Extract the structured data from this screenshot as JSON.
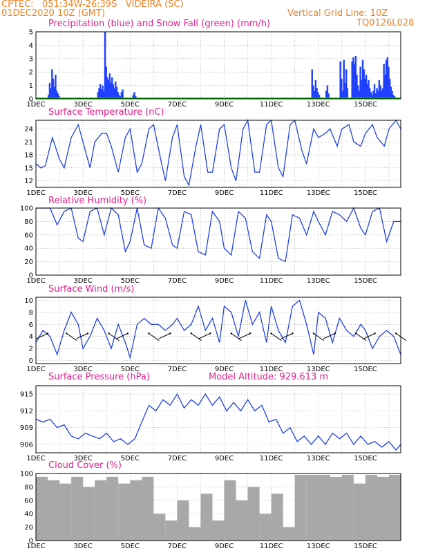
{
  "header": {
    "line1": "CPTEC:   051:34W-26:39S   VIDEIRA (SC)",
    "line2": "01DEC2020 10Z (GMT)",
    "grid_note": "Vertical Grid Line: 10Z",
    "code": "TQ0126L028",
    "altitude": "Model Altitude: 929.613 m"
  },
  "colors": {
    "precip": "#2040ff",
    "snow": "#00c000",
    "line": "#2040e0",
    "wind": "#000000",
    "cloud": "#a8a8a8",
    "title": "#e0208c",
    "header": "#f08020"
  },
  "x_tick_labels": [
    "1DEC",
    "3DEC",
    "5DEC",
    "7DEC",
    "9DEC",
    "11DEC",
    "13DEC",
    "15DEC"
  ],
  "chart_data": [
    {
      "type": "bar",
      "id": "precip",
      "title": "Precipitation (blue) and Snow Fall (green) (mm/h)",
      "ylim": [
        0,
        5
      ],
      "yticks": [
        0,
        1,
        2,
        3,
        4,
        5
      ],
      "x_unit": "days since 01DEC 10Z",
      "series": [
        {
          "name": "Precipitation",
          "x": [
            0.5,
            0.55,
            0.6,
            0.65,
            0.7,
            0.75,
            0.8,
            0.85,
            0.9,
            0.95,
            2.6,
            2.65,
            2.7,
            2.75,
            2.8,
            2.85,
            2.9,
            2.95,
            3.0,
            3.05,
            3.1,
            3.15,
            3.2,
            3.25,
            3.3,
            3.35,
            3.4,
            3.45,
            3.5,
            3.55,
            3.6,
            3.65,
            4.1,
            4.15,
            4.2,
            11.7,
            11.75,
            11.8,
            11.85,
            11.9,
            11.95,
            12.0,
            12.3,
            12.35,
            12.4,
            12.9,
            12.95,
            13.0,
            13.05,
            13.1,
            13.15,
            13.2,
            13.4,
            13.45,
            13.5,
            13.55,
            13.6,
            13.65,
            13.7,
            13.75,
            13.8,
            13.85,
            13.9,
            13.95,
            14.0,
            14.05,
            14.1,
            14.15,
            14.2,
            14.25,
            14.3,
            14.35,
            14.4,
            14.45,
            14.5,
            14.55,
            14.6,
            14.65,
            14.7,
            14.75,
            14.8,
            14.85,
            14.9,
            14.95,
            15.0,
            15.05,
            15.1,
            15.15,
            15.2,
            15.25
          ],
          "values": [
            0.3,
            1.2,
            0.8,
            2.2,
            1.5,
            0.9,
            1.8,
            0.6,
            0.4,
            0.2,
            0.5,
            0.8,
            1.1,
            0.7,
            1.0,
            0.6,
            5.0,
            2.4,
            1.6,
            1.4,
            1.9,
            1.2,
            1.6,
            1.1,
            0.8,
            1.3,
            0.9,
            0.5,
            0.3,
            0.2,
            0.5,
            0.7,
            0.3,
            0.5,
            0.2,
            2.2,
            1.0,
            0.6,
            1.4,
            0.8,
            0.5,
            0.3,
            0.6,
            1.0,
            0.4,
            2.8,
            1.5,
            0.6,
            2.9,
            1.2,
            2.2,
            0.8,
            2.8,
            3.1,
            2.6,
            3.2,
            1.8,
            1.0,
            0.6,
            2.4,
            1.4,
            2.9,
            2.2,
            1.5,
            1.8,
            1.1,
            1.4,
            0.8,
            0.5,
            0.3,
            0.6,
            1.1,
            0.4,
            0.8,
            0.6,
            1.4,
            1.0,
            0.6,
            0.8,
            2.6,
            1.8,
            2.9,
            3.1,
            2.4,
            1.5,
            0.9,
            0.6,
            0.3,
            0.2,
            0.1
          ]
        },
        {
          "name": "Snow Fall",
          "x": [
            0,
            15.5
          ],
          "values": [
            0,
            0
          ]
        }
      ]
    },
    {
      "type": "line",
      "id": "temp",
      "title": "Surface Temperature (nC)",
      "ylim": [
        10.5,
        26
      ],
      "yticks": [
        12,
        15,
        18,
        21,
        24
      ],
      "series": [
        {
          "name": "Temperature",
          "x": [
            0,
            0.2,
            0.4,
            0.7,
            1.0,
            1.2,
            1.5,
            1.8,
            2.0,
            2.3,
            2.5,
            2.8,
            3.0,
            3.2,
            3.5,
            3.8,
            4.0,
            4.3,
            4.5,
            4.8,
            5.0,
            5.3,
            5.5,
            5.8,
            6.0,
            6.3,
            6.5,
            6.8,
            7.0,
            7.3,
            7.5,
            7.8,
            8.0,
            8.3,
            8.5,
            8.8,
            9.0,
            9.3,
            9.5,
            9.8,
            10.0,
            10.3,
            10.5,
            10.8,
            11.0,
            11.3,
            11.5,
            11.8,
            12.0,
            12.3,
            12.5,
            12.8,
            13.0,
            13.3,
            13.5,
            13.8,
            14.0,
            14.3,
            14.5,
            14.8,
            15.0,
            15.3,
            15.5
          ],
          "values": [
            16,
            15,
            15.5,
            22,
            17,
            15,
            22,
            25,
            21,
            15,
            21,
            23,
            23,
            20,
            14,
            22,
            24,
            14,
            16,
            24,
            25,
            17,
            12,
            22,
            25,
            13,
            11,
            20,
            25,
            14,
            14,
            24,
            25,
            15,
            12,
            24,
            26,
            14,
            14,
            25,
            26,
            15,
            13,
            25,
            26,
            19,
            16,
            24,
            22,
            23,
            24,
            20,
            24,
            25,
            21,
            20,
            23,
            25,
            22,
            20,
            24,
            26,
            24
          ]
        }
      ]
    },
    {
      "type": "line",
      "id": "rh",
      "title": "Relative Humidity (%)",
      "ylim": [
        0,
        100
      ],
      "yticks": [
        0,
        20,
        40,
        60,
        80,
        100
      ],
      "series": [
        {
          "name": "Humidity",
          "x": [
            0,
            0.3,
            0.6,
            0.9,
            1.2,
            1.5,
            1.8,
            2.0,
            2.3,
            2.6,
            2.9,
            3.2,
            3.5,
            3.8,
            4.0,
            4.3,
            4.6,
            4.9,
            5.2,
            5.5,
            5.8,
            6.0,
            6.3,
            6.6,
            6.9,
            7.2,
            7.5,
            7.8,
            8.0,
            8.3,
            8.6,
            8.9,
            9.2,
            9.5,
            9.8,
            10.0,
            10.3,
            10.6,
            10.9,
            11.2,
            11.5,
            11.8,
            12.0,
            12.3,
            12.6,
            12.9,
            13.2,
            13.5,
            13.8,
            14.0,
            14.3,
            14.6,
            14.9,
            15.2,
            15.5
          ],
          "values": [
            100,
            100,
            100,
            75,
            95,
            100,
            55,
            50,
            95,
            100,
            60,
            100,
            90,
            35,
            50,
            100,
            45,
            40,
            100,
            85,
            45,
            40,
            95,
            90,
            35,
            30,
            95,
            80,
            40,
            30,
            95,
            85,
            35,
            25,
            90,
            80,
            25,
            20,
            90,
            85,
            60,
            95,
            80,
            60,
            95,
            90,
            80,
            100,
            70,
            60,
            95,
            100,
            50,
            80,
            80
          ]
        }
      ]
    },
    {
      "type": "line",
      "id": "wind",
      "title": "Surface Wind (m/s)",
      "ylim": [
        -0.5,
        10.5
      ],
      "yticks": [
        0,
        2,
        4,
        6,
        8,
        10
      ],
      "series": [
        {
          "name": "Wind speed",
          "x": [
            0,
            0.3,
            0.6,
            0.9,
            1.2,
            1.5,
            1.8,
            2.0,
            2.3,
            2.6,
            2.9,
            3.2,
            3.5,
            3.8,
            4.0,
            4.3,
            4.6,
            4.9,
            5.2,
            5.5,
            5.8,
            6.0,
            6.3,
            6.6,
            6.9,
            7.2,
            7.5,
            7.8,
            8.0,
            8.3,
            8.6,
            8.9,
            9.2,
            9.5,
            9.8,
            10.0,
            10.3,
            10.6,
            10.9,
            11.2,
            11.5,
            11.8,
            12.0,
            12.3,
            12.6,
            12.9,
            13.2,
            13.5,
            13.8,
            14.0,
            14.3,
            14.6,
            14.9,
            15.2,
            15.5
          ],
          "values": [
            3,
            5,
            4,
            1,
            5,
            8,
            6,
            2,
            4,
            7,
            5,
            2,
            6,
            3,
            0.5,
            6,
            7,
            6,
            6,
            5,
            6,
            7,
            5,
            6,
            9,
            5,
            7,
            3,
            9,
            8,
            4,
            10,
            6,
            8,
            3,
            9,
            5,
            3,
            9,
            10,
            6,
            1,
            8,
            7,
            3,
            7,
            5,
            4,
            6,
            5,
            2,
            4,
            5,
            4,
            1
          ]
        }
      ],
      "arrows_x": [
        0.5,
        1.3,
        2.2,
        3.1,
        3.9,
        4.8,
        5.7,
        6.6,
        7.4,
        8.3,
        9.1,
        10.0,
        10.9,
        11.8,
        12.7,
        13.6,
        14.4,
        15.3
      ]
    },
    {
      "type": "line",
      "id": "pres",
      "title": "Surface Pressure (hPa)",
      "ylim": [
        904.5,
        916.5
      ],
      "yticks": [
        906,
        909,
        912,
        915
      ],
      "series": [
        {
          "name": "Pressure",
          "x": [
            0,
            0.3,
            0.6,
            0.9,
            1.2,
            1.5,
            1.8,
            2.1,
            2.4,
            2.7,
            3.0,
            3.3,
            3.6,
            3.9,
            4.2,
            4.5,
            4.8,
            5.1,
            5.4,
            5.7,
            6.0,
            6.3,
            6.6,
            6.9,
            7.2,
            7.5,
            7.8,
            8.1,
            8.4,
            8.7,
            9.0,
            9.3,
            9.6,
            9.9,
            10.2,
            10.5,
            10.8,
            11.1,
            11.4,
            11.7,
            12.0,
            12.3,
            12.6,
            12.9,
            13.2,
            13.5,
            13.8,
            14.1,
            14.4,
            14.7,
            15.0,
            15.3,
            15.5
          ],
          "values": [
            910.5,
            910,
            910.5,
            909,
            909.5,
            907.5,
            907,
            908,
            907.5,
            907,
            908,
            906.5,
            907,
            906,
            907,
            910,
            913,
            912,
            914,
            913,
            915,
            912.5,
            914,
            913,
            915,
            913,
            914.5,
            912,
            913.5,
            912,
            914,
            912,
            913,
            910,
            910.5,
            908,
            909,
            906.5,
            907.5,
            906,
            907.5,
            906,
            908,
            907,
            908,
            906,
            907.5,
            906,
            906.5,
            905.5,
            906.5,
            905,
            906
          ]
        }
      ]
    },
    {
      "type": "bar",
      "id": "cloud",
      "title": "Cloud Cover (%)",
      "ylim": [
        0,
        100
      ],
      "yticks": [
        0,
        20,
        40,
        60,
        80,
        100
      ],
      "series": [
        {
          "name": "Cloud cover",
          "x": [
            0,
            0.5,
            1.0,
            1.5,
            2.0,
            2.5,
            3.0,
            3.5,
            4.0,
            4.5,
            5.0,
            5.5,
            6.0,
            6.5,
            7.0,
            7.5,
            8.0,
            8.5,
            9.0,
            9.5,
            10.0,
            10.5,
            11.0,
            11.5,
            12.0,
            12.5,
            13.0,
            13.5,
            14.0,
            14.5,
            15.0,
            15.5
          ],
          "values": [
            95,
            90,
            85,
            95,
            80,
            90,
            95,
            85,
            90,
            95,
            40,
            30,
            60,
            20,
            70,
            30,
            90,
            60,
            80,
            40,
            70,
            20,
            98,
            98,
            98,
            95,
            98,
            85,
            98,
            95,
            98,
            98
          ]
        }
      ]
    }
  ]
}
